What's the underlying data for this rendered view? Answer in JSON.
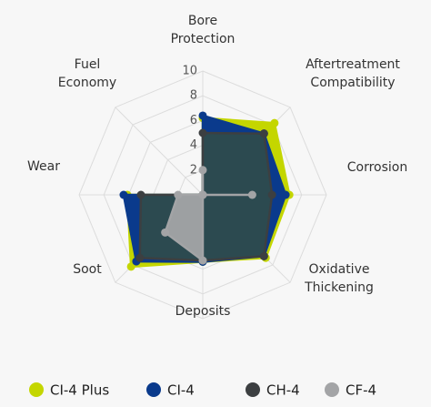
{
  "chart_data": {
    "type": "radar",
    "categories": [
      [
        "Bore",
        "Protection"
      ],
      [
        "Aftertreatment",
        "Compatibility"
      ],
      [
        "Corrosion"
      ],
      [
        "Oxidative",
        "Thickening"
      ],
      [
        "Deposits"
      ],
      [
        "Soot"
      ],
      [
        "Wear"
      ],
      [
        "Fuel",
        "Economy"
      ]
    ],
    "ylim": [
      0,
      10
    ],
    "yticks": [
      2,
      4,
      6,
      8,
      10
    ],
    "grid": true,
    "series": [
      {
        "name": "CI-4 Plus",
        "color": "#c4d600",
        "values": [
          6.2,
          8.2,
          7,
          7.2,
          5.4,
          8.2,
          6.1,
          0
        ]
      },
      {
        "name": "CI-4",
        "color": "#0a3a8c",
        "values": [
          6.4,
          7,
          6.7,
          7,
          5.4,
          7.6,
          6.4,
          0
        ]
      },
      {
        "name": "CH-4",
        "color": "#3c3f41",
        "values": [
          5,
          7,
          5.6,
          7,
          5.3,
          7.2,
          5,
          0
        ]
      },
      {
        "name": "CF-4",
        "color": "#a3a4a6",
        "values": [
          2,
          0,
          4,
          0,
          5.3,
          4.3,
          2,
          0
        ]
      }
    ]
  }
}
